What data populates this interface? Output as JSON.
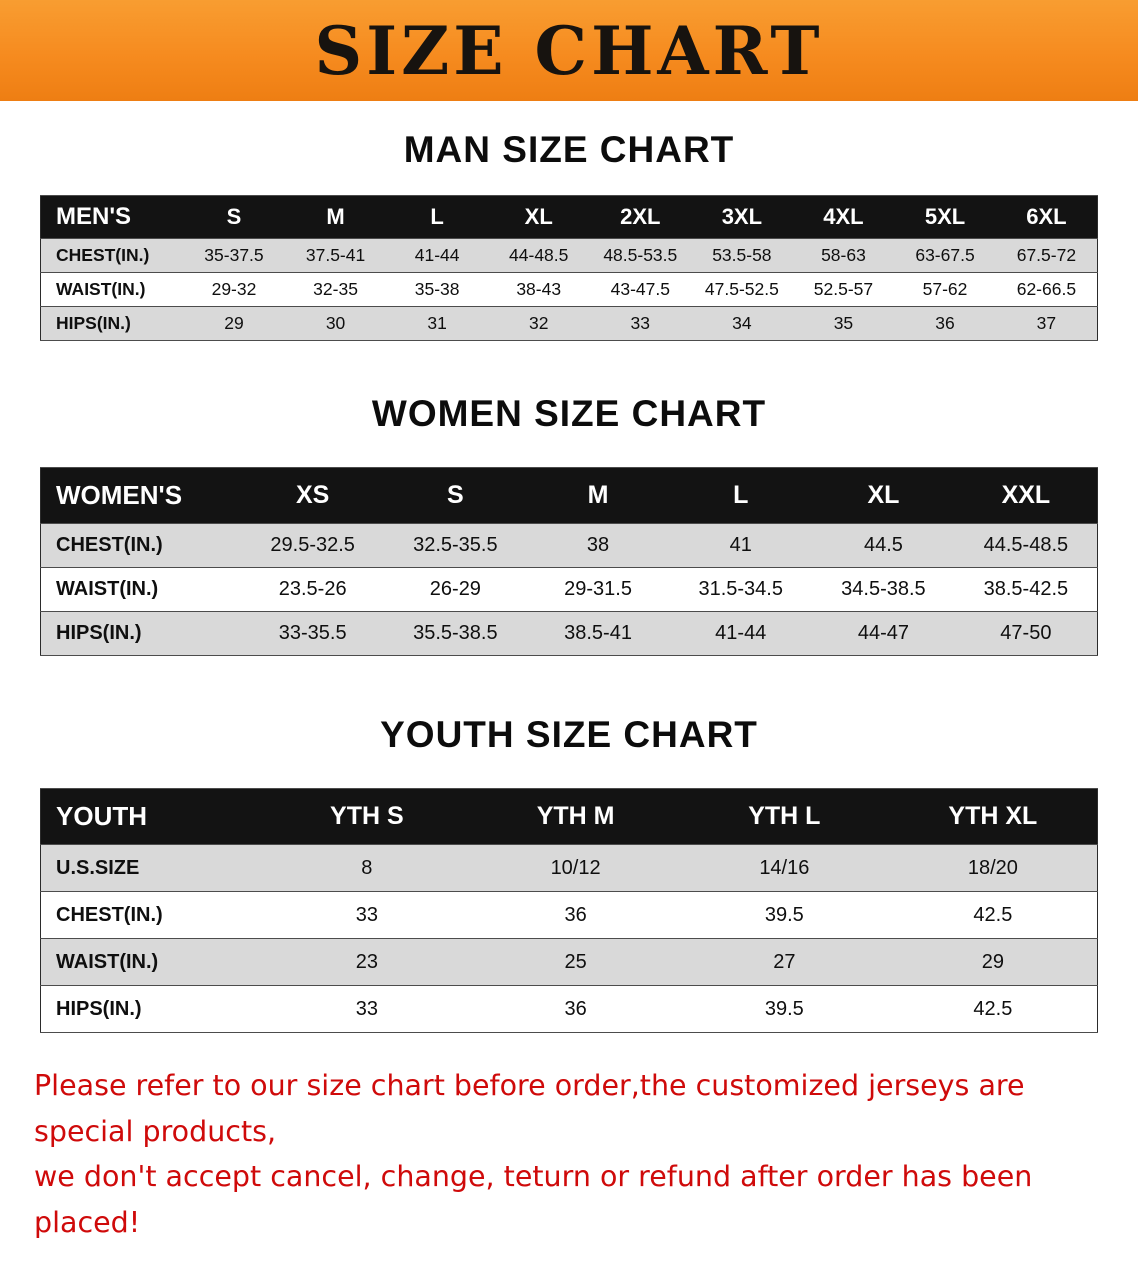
{
  "banner": {
    "title": "SIZE CHART",
    "background_color": "#f68b1f",
    "text_color": "#17130f"
  },
  "sections": [
    {
      "heading": "MAN SIZE CHART",
      "table": {
        "header": [
          "MEN'S",
          "S",
          "M",
          "L",
          "XL",
          "2XL",
          "3XL",
          "4XL",
          "5XL",
          "6XL"
        ],
        "rows": [
          [
            "CHEST(IN.)",
            "35-37.5",
            "37.5-41",
            "41-44",
            "44-48.5",
            "48.5-53.5",
            "53.5-58",
            "58-63",
            "63-67.5",
            "67.5-72"
          ],
          [
            "WAIST(IN.)",
            "29-32",
            "32-35",
            "35-38",
            "38-43",
            "43-47.5",
            "47.5-52.5",
            "52.5-57",
            "57-62",
            "62-66.5"
          ],
          [
            "HIPS(IN.)",
            "29",
            "30",
            "31",
            "32",
            "33",
            "34",
            "35",
            "36",
            "37"
          ]
        ]
      }
    },
    {
      "heading": "WOMEN SIZE CHART",
      "table": {
        "header": [
          "WOMEN'S",
          "XS",
          "S",
          "M",
          "L",
          "XL",
          "XXL"
        ],
        "rows": [
          [
            "CHEST(IN.)",
            "29.5-32.5",
            "32.5-35.5",
            "38",
            "41",
            "44.5",
            "44.5-48.5"
          ],
          [
            "WAIST(IN.)",
            "23.5-26",
            "26-29",
            "29-31.5",
            "31.5-34.5",
            "34.5-38.5",
            "38.5-42.5"
          ],
          [
            "HIPS(IN.)",
            "33-35.5",
            "35.5-38.5",
            "38.5-41",
            "41-44",
            "44-47",
            "47-50"
          ]
        ]
      }
    },
    {
      "heading": "YOUTH SIZE CHART",
      "table": {
        "header": [
          "YOUTH",
          "YTH S",
          "YTH M",
          "YTH L",
          "YTH XL"
        ],
        "rows": [
          [
            "U.S.SIZE",
            "8",
            "10/12",
            "14/16",
            "18/20"
          ],
          [
            "CHEST(IN.)",
            "33",
            "36",
            "39.5",
            "42.5"
          ],
          [
            "WAIST(IN.)",
            "23",
            "25",
            "27",
            "29"
          ],
          [
            "HIPS(IN.)",
            "33",
            "36",
            "39.5",
            "42.5"
          ]
        ]
      }
    }
  ],
  "footer": {
    "text_color": "#cf0a0a",
    "lines": [
      "Please refer to our size chart before order,the customized jerseys are special products,",
      "we don't accept cancel, change, teturn or refund after order has been placed!"
    ]
  },
  "colors": {
    "header_row_bg": "#131313",
    "shaded_row_bg": "#d9d9d9",
    "banner_orange": "#f68b1f"
  }
}
